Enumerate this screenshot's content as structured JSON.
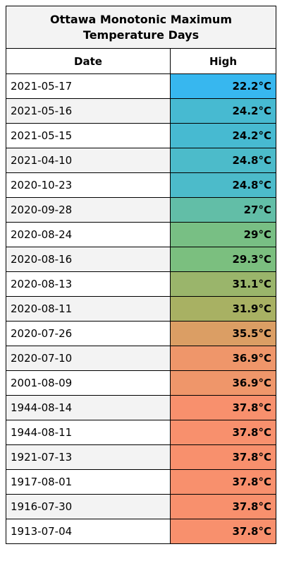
{
  "table": {
    "title": "Ottawa Monotonic Maximum Temperature Days",
    "headers": {
      "date": "Date",
      "high": "High"
    },
    "rows": [
      {
        "date": "2021-05-17",
        "high": "22.2°C",
        "color": "#37b7ef"
      },
      {
        "date": "2021-05-16",
        "high": "24.2°C",
        "color": "#47bad1"
      },
      {
        "date": "2021-05-15",
        "high": "24.2°C",
        "color": "#47bad1"
      },
      {
        "date": "2021-04-10",
        "high": "24.8°C",
        "color": "#4cbbca"
      },
      {
        "date": "2020-10-23",
        "high": "24.8°C",
        "color": "#4cbbca"
      },
      {
        "date": "2020-09-28",
        "high": "27°C",
        "color": "#62bea7"
      },
      {
        "date": "2020-08-24",
        "high": "29°C",
        "color": "#78bf84"
      },
      {
        "date": "2020-08-16",
        "high": "29.3°C",
        "color": "#7bbf7f"
      },
      {
        "date": "2020-08-13",
        "high": "31.1°C",
        "color": "#9ab56b"
      },
      {
        "date": "2020-08-11",
        "high": "31.9°C",
        "color": "#a8b163"
      },
      {
        "date": "2020-07-26",
        "high": "35.5°C",
        "color": "#db9e64"
      },
      {
        "date": "2020-07-10",
        "high": "36.9°C",
        "color": "#ef966a"
      },
      {
        "date": "2001-08-09",
        "high": "36.9°C",
        "color": "#ef966a"
      },
      {
        "date": "1944-08-14",
        "high": "37.8°C",
        "color": "#f8906d"
      },
      {
        "date": "1944-08-11",
        "high": "37.8°C",
        "color": "#f8906d"
      },
      {
        "date": "1921-07-13",
        "high": "37.8°C",
        "color": "#f8906d"
      },
      {
        "date": "1917-08-01",
        "high": "37.8°C",
        "color": "#f8906d"
      },
      {
        "date": "1916-07-30",
        "high": "37.8°C",
        "color": "#f8906d"
      },
      {
        "date": "1913-07-04",
        "high": "37.8°C",
        "color": "#f8906d"
      }
    ]
  }
}
